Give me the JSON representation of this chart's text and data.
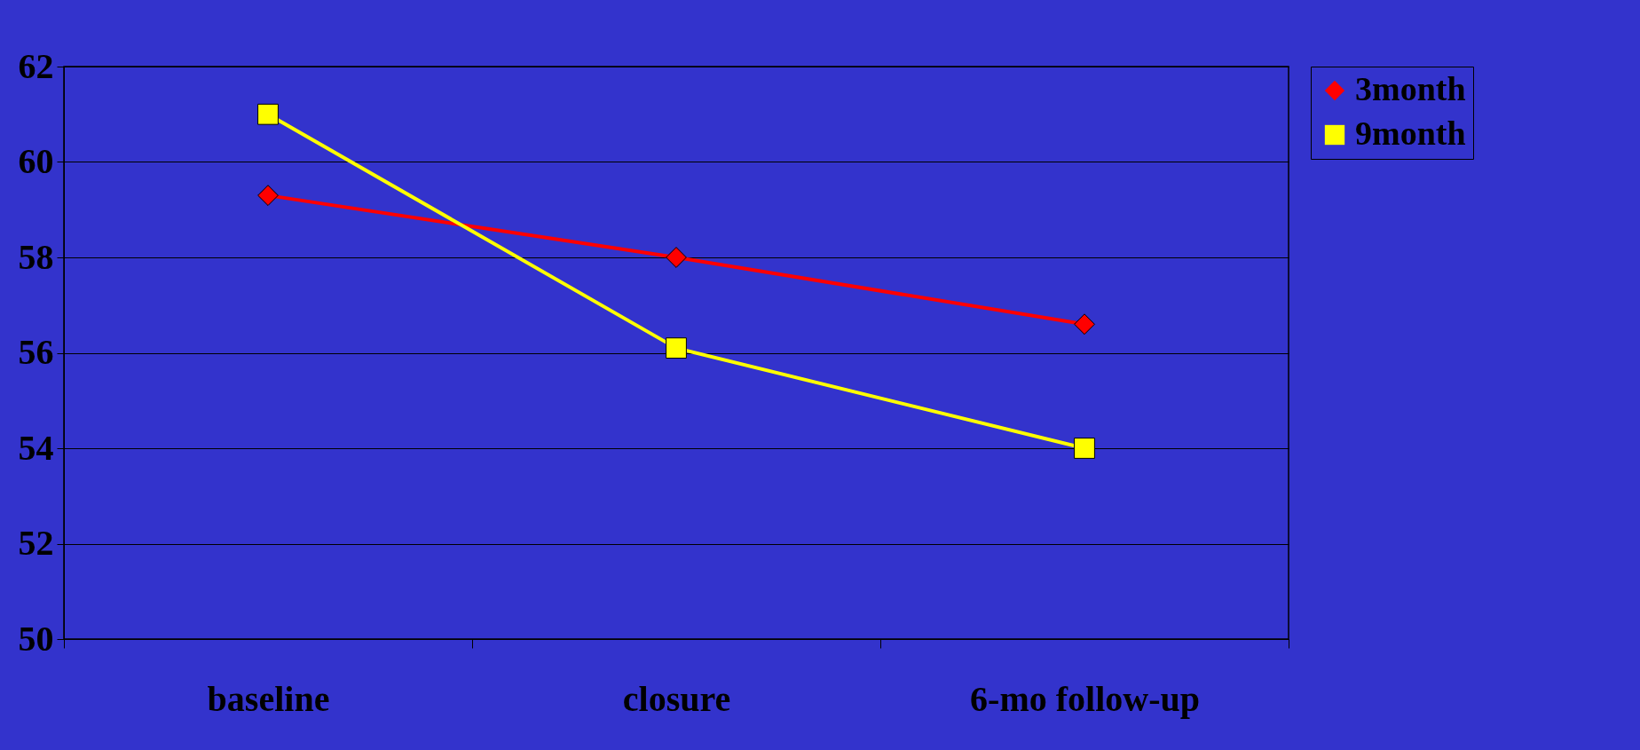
{
  "chart_data": {
    "type": "line",
    "categories": [
      "baseline",
      "closure",
      "6-mo follow-up"
    ],
    "series": [
      {
        "name": "3month",
        "color": "#ff0000",
        "values": [
          59.3,
          58.0,
          56.6
        ],
        "marker": "diamond"
      },
      {
        "name": "9month",
        "color": "#ffff00",
        "values": [
          61.0,
          56.1,
          54.0
        ],
        "marker": "square"
      }
    ],
    "ylim": [
      50,
      62
    ],
    "yticks": [
      50,
      52,
      54,
      56,
      58,
      60,
      62
    ],
    "grid": "y",
    "legend": "right"
  }
}
